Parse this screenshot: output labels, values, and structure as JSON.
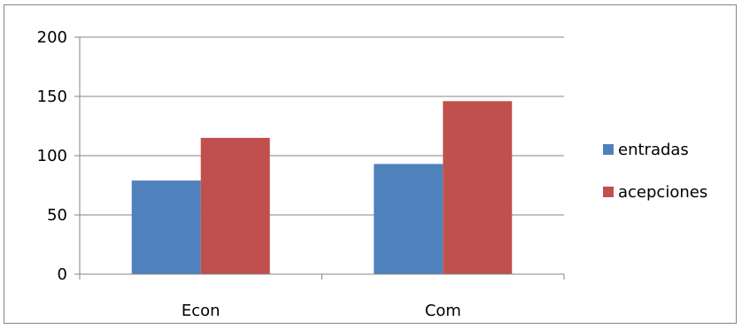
{
  "chart_data": {
    "type": "bar",
    "categories": [
      "Econ",
      "Com"
    ],
    "series": [
      {
        "name": "entradas",
        "color": "#4F81BD",
        "values": [
          79,
          93
        ]
      },
      {
        "name": "acepciones",
        "color": "#C0504D",
        "values": [
          115,
          146
        ]
      }
    ],
    "ylim": [
      0,
      200
    ],
    "yticks": [
      "0",
      "50",
      "100",
      "150",
      "200"
    ],
    "grid": true,
    "legend_position": "right"
  }
}
